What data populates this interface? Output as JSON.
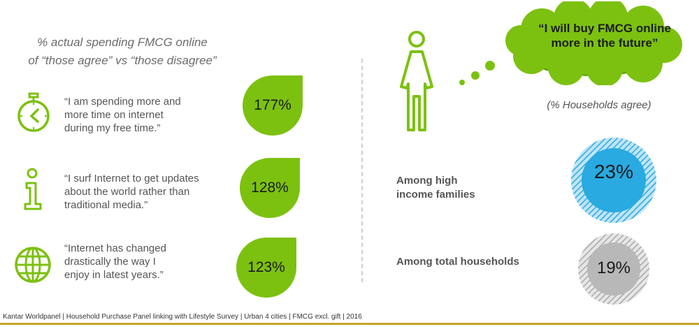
{
  "title": {
    "line1": "% actual spending FMCG online",
    "line2": "of “those agree” vs “those disagree”"
  },
  "statements": [
    {
      "icon": "stopwatch-icon",
      "lines": [
        "“I am spending more and",
        "more time on internet",
        "during my free time.”"
      ],
      "value": "177%"
    },
    {
      "icon": "info-icon",
      "lines": [
        "“I surf Internet to get updates",
        "about the world rather than",
        "traditional media.”"
      ],
      "value": "128%"
    },
    {
      "icon": "globe-icon",
      "lines": [
        "“Internet has changed",
        "drastically the way I",
        "enjoy in latest years.”"
      ],
      "value": "123%"
    }
  ],
  "right": {
    "thought_bubble": "“I will buy FMCG online more in the future”",
    "subtitle": "(% Households agree)",
    "segments": [
      {
        "label_line1": "Among high",
        "label_line2": "income families",
        "value": "23%",
        "color": "#29aae1"
      },
      {
        "label_line1": "Among total households",
        "label_line2": "",
        "value": "19%",
        "color": "#b8b8b8"
      }
    ]
  },
  "footer": "Kantar Worldpanel | Household Purchase Panel linking with Lifestyle Survey | Urban 4 cities | FMCG excl. gift | 2016",
  "colors": {
    "accent_green": "#7cc110",
    "blue": "#29aae1",
    "grey": "#b8b8b8",
    "gold": "#c9a227"
  }
}
